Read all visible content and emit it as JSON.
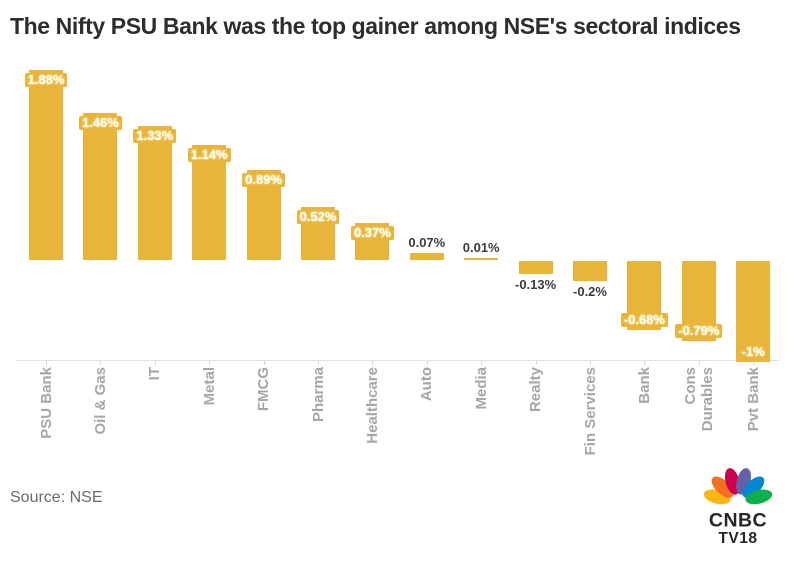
{
  "title": "The Nifty PSU Bank was the top gainer among NSE's sectoral indices",
  "source": "Source: NSE",
  "chart_data": {
    "type": "bar",
    "title": "The Nifty PSU Bank was the top gainer among NSE's sectoral indices",
    "categories": [
      "PSU Bank",
      "Oil & Gas",
      "IT",
      "Metal",
      "FMCG",
      "Pharma",
      "Healthcare",
      "Auto",
      "Media",
      "Realty",
      "Fin Services",
      "Bank",
      "Cons\nDurables",
      "Pvt Bank"
    ],
    "values": [
      1.88,
      1.46,
      1.33,
      1.14,
      0.89,
      0.52,
      0.37,
      0.07,
      0.01,
      -0.13,
      -0.2,
      -0.68,
      -0.79,
      -1
    ],
    "labels": [
      "1.88%",
      "1.46%",
      "1.33%",
      "1.14%",
      "0.89%",
      "0.52%",
      "0.37%",
      "0.07%",
      "0.01%",
      "-0.13%",
      "-0.2%",
      "-0.68%",
      "-0.79%",
      "-1%"
    ],
    "xlabel": "",
    "ylabel": "",
    "ylim": [
      -1.1,
      2.0
    ],
    "grid": false,
    "legend": false,
    "bar_color": "#E9B43A",
    "label_inside_color": "#FFFFFF",
    "label_outside_color": "#3C3C3C",
    "category_label_color": "#A6A6A6",
    "axis_color": "#E1E1E1"
  },
  "logo": {
    "line1": "CNBC",
    "line2": "TV18",
    "text_color": "#262626",
    "feather_colors": [
      "#FCB711",
      "#F37021",
      "#CC004C",
      "#6460AA",
      "#0089D0",
      "#0DB14B"
    ]
  }
}
